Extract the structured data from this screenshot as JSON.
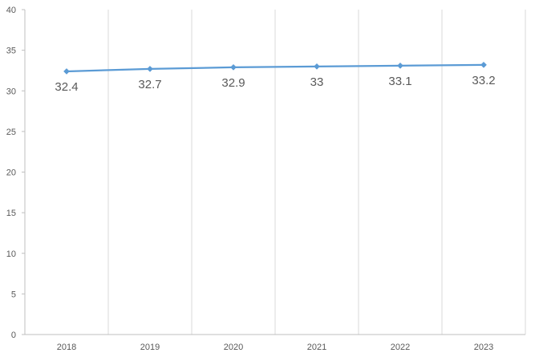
{
  "chart_data": {
    "type": "line",
    "title": "",
    "xlabel": "",
    "ylabel": "",
    "categories": [
      "2018",
      "2019",
      "2020",
      "2021",
      "2022",
      "2023"
    ],
    "series": [
      {
        "values": [
          32.4,
          32.7,
          32.9,
          33,
          33.1,
          33.2
        ],
        "color": "#5B9BD5"
      }
    ],
    "data_labels": [
      "32.4",
      "32.7",
      "32.9",
      "33",
      "33.1",
      "33.2"
    ],
    "ylim": [
      0,
      40
    ],
    "yticks": [
      0,
      5,
      10,
      15,
      20,
      25,
      30,
      35,
      40
    ],
    "ytick_labels": [
      "0",
      "5",
      "10",
      "15",
      "20",
      "25",
      "30",
      "35",
      "40"
    ],
    "grid": {
      "vertical": true,
      "horizontal": false,
      "color": "#D9D9D9"
    },
    "axis_color": "#BFBFBF",
    "marker": "diamond",
    "legend": "none"
  }
}
